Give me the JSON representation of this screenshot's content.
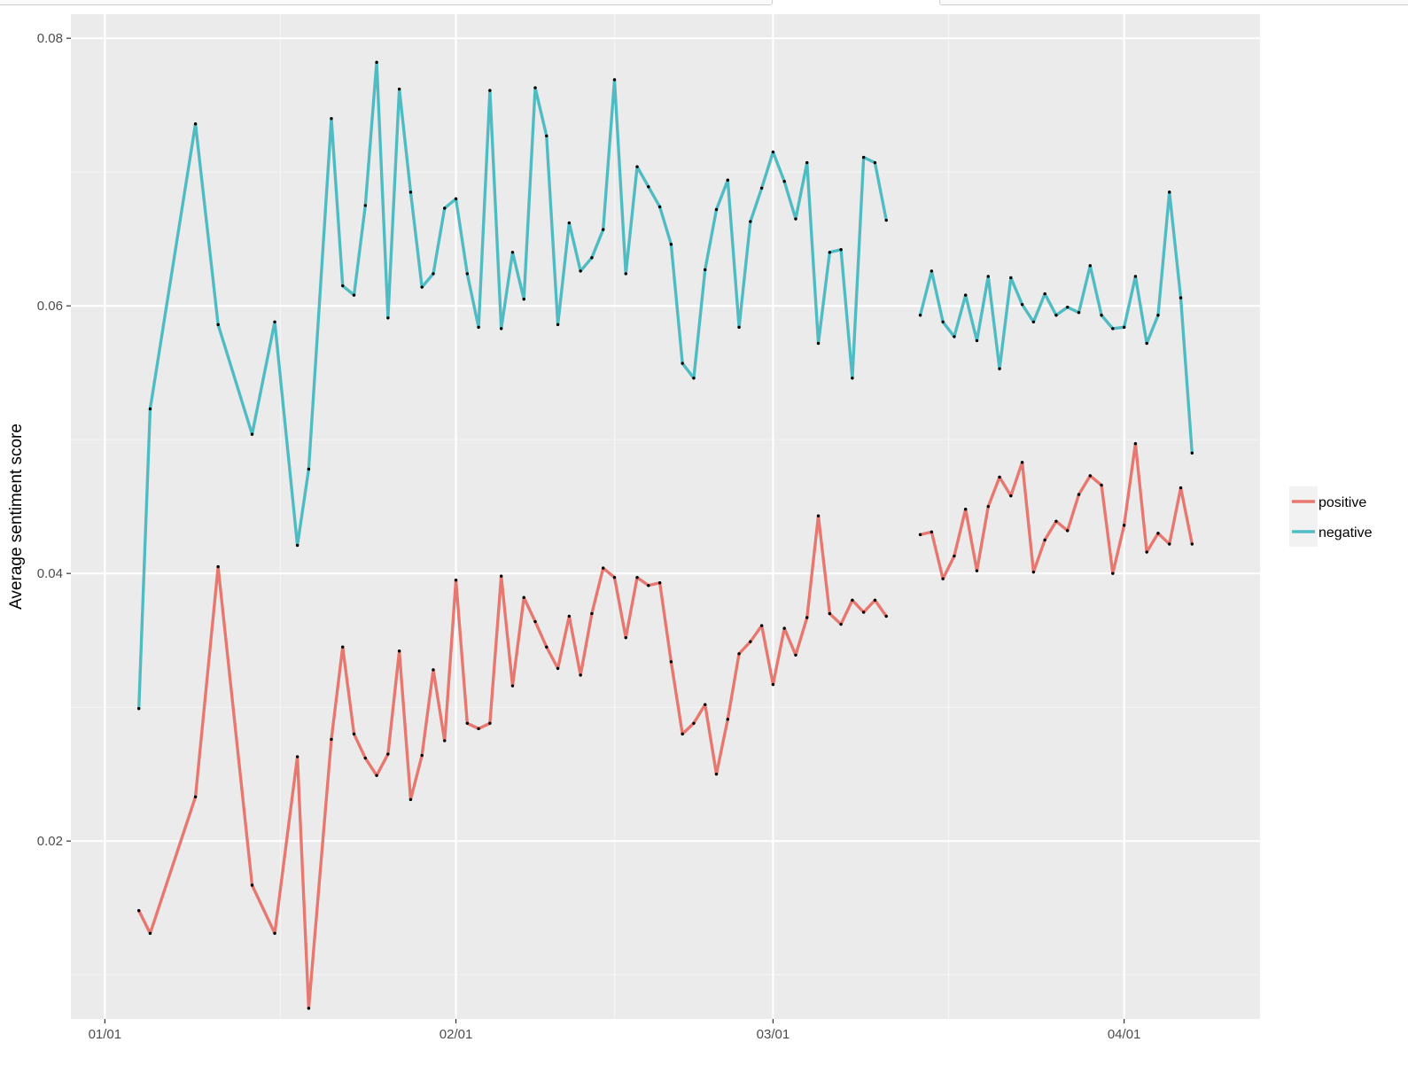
{
  "colors": {
    "panel": "#ebebeb",
    "grid_major": "#ffffff",
    "grid_minor": "#f5f5f5",
    "positive": "#e8776f",
    "negative": "#4fbcc4",
    "point": "#000000",
    "legend_key_bg": "#f2f2f2"
  },
  "chart_data": {
    "type": "line",
    "title": "",
    "xlabel": "",
    "ylabel": "Average sentiment score",
    "x_type": "date",
    "xlim": [
      "2016-12-29",
      "2017-04-13"
    ],
    "ylim": [
      0.0067,
      0.0818
    ],
    "x_ticks": [
      "2017-01-01",
      "2017-02-01",
      "2017-03-01",
      "2017-04-01"
    ],
    "x_tick_labels": [
      "01/01",
      "02/01",
      "03/01",
      "04/01"
    ],
    "y_ticks": [
      0.02,
      0.04,
      0.06,
      0.08
    ],
    "y_tick_labels": [
      "0.02",
      "0.04",
      "0.06",
      "0.08"
    ],
    "grid": true,
    "legend_position": "right",
    "series": [
      {
        "name": "positive",
        "color": "#e8776f",
        "segments": [
          [
            [
              "2017-01-04",
              0.0148
            ],
            [
              "2017-01-05",
              0.0131
            ],
            [
              "2017-01-09",
              0.0233
            ],
            [
              "2017-01-11",
              0.0405
            ],
            [
              "2017-01-14",
              0.0167
            ],
            [
              "2017-01-16",
              0.0131
            ],
            [
              "2017-01-18",
              0.0263
            ],
            [
              "2017-01-19",
              0.0075
            ],
            [
              "2017-01-21",
              0.0276
            ],
            [
              "2017-01-22",
              0.0345
            ],
            [
              "2017-01-23",
              0.028
            ],
            [
              "2017-01-24",
              0.0262
            ],
            [
              "2017-01-25",
              0.0249
            ],
            [
              "2017-01-26",
              0.0265
            ],
            [
              "2017-01-27",
              0.0342
            ],
            [
              "2017-01-28",
              0.0231
            ],
            [
              "2017-01-29",
              0.0264
            ],
            [
              "2017-01-30",
              0.0328
            ],
            [
              "2017-01-31",
              0.0275
            ],
            [
              "2017-02-01",
              0.0395
            ],
            [
              "2017-02-02",
              0.0288
            ],
            [
              "2017-02-03",
              0.0284
            ],
            [
              "2017-02-04",
              0.0288
            ],
            [
              "2017-02-05",
              0.0398
            ],
            [
              "2017-02-06",
              0.0316
            ],
            [
              "2017-02-07",
              0.0382
            ],
            [
              "2017-02-08",
              0.0364
            ],
            [
              "2017-02-09",
              0.0345
            ],
            [
              "2017-02-10",
              0.0329
            ],
            [
              "2017-02-11",
              0.0368
            ],
            [
              "2017-02-12",
              0.0324
            ],
            [
              "2017-02-13",
              0.037
            ],
            [
              "2017-02-14",
              0.0404
            ],
            [
              "2017-02-15",
              0.0397
            ],
            [
              "2017-02-16",
              0.0352
            ],
            [
              "2017-02-17",
              0.0397
            ],
            [
              "2017-02-18",
              0.0391
            ],
            [
              "2017-02-19",
              0.0393
            ],
            [
              "2017-02-20",
              0.0334
            ],
            [
              "2017-02-21",
              0.028
            ],
            [
              "2017-02-22",
              0.0288
            ],
            [
              "2017-02-23",
              0.0302
            ],
            [
              "2017-02-24",
              0.025
            ],
            [
              "2017-02-25",
              0.0291
            ],
            [
              "2017-02-26",
              0.034
            ],
            [
              "2017-02-27",
              0.0349
            ],
            [
              "2017-02-28",
              0.0361
            ],
            [
              "2017-03-01",
              0.0317
            ],
            [
              "2017-03-02",
              0.0359
            ],
            [
              "2017-03-03",
              0.0339
            ],
            [
              "2017-03-04",
              0.0367
            ],
            [
              "2017-03-05",
              0.0443
            ],
            [
              "2017-03-06",
              0.037
            ],
            [
              "2017-03-07",
              0.0362
            ],
            [
              "2017-03-08",
              0.038
            ],
            [
              "2017-03-09",
              0.0371
            ],
            [
              "2017-03-10",
              0.038
            ],
            [
              "2017-03-11",
              0.0368
            ]
          ],
          [
            [
              "2017-03-14",
              0.0429
            ],
            [
              "2017-03-15",
              0.0431
            ],
            [
              "2017-03-16",
              0.0396
            ],
            [
              "2017-03-17",
              0.0413
            ],
            [
              "2017-03-18",
              0.0448
            ],
            [
              "2017-03-19",
              0.0402
            ],
            [
              "2017-03-20",
              0.045
            ],
            [
              "2017-03-21",
              0.0472
            ],
            [
              "2017-03-22",
              0.0458
            ],
            [
              "2017-03-23",
              0.0483
            ],
            [
              "2017-03-24",
              0.0401
            ],
            [
              "2017-03-25",
              0.0425
            ],
            [
              "2017-03-26",
              0.0439
            ],
            [
              "2017-03-27",
              0.0432
            ],
            [
              "2017-03-28",
              0.0459
            ],
            [
              "2017-03-29",
              0.0473
            ],
            [
              "2017-03-30",
              0.0466
            ],
            [
              "2017-03-31",
              0.04
            ],
            [
              "2017-04-01",
              0.0436
            ],
            [
              "2017-04-02",
              0.0497
            ],
            [
              "2017-04-03",
              0.0416
            ],
            [
              "2017-04-04",
              0.043
            ],
            [
              "2017-04-05",
              0.0422
            ],
            [
              "2017-04-06",
              0.0464
            ],
            [
              "2017-04-07",
              0.0422
            ]
          ]
        ]
      },
      {
        "name": "negative",
        "color": "#4fbcc4",
        "segments": [
          [
            [
              "2017-01-04",
              0.0299
            ],
            [
              "2017-01-05",
              0.0523
            ],
            [
              "2017-01-09",
              0.0736
            ],
            [
              "2017-01-11",
              0.0586
            ],
            [
              "2017-01-14",
              0.0504
            ],
            [
              "2017-01-16",
              0.0588
            ],
            [
              "2017-01-18",
              0.0421
            ],
            [
              "2017-01-19",
              0.0478
            ],
            [
              "2017-01-21",
              0.074
            ],
            [
              "2017-01-22",
              0.0615
            ],
            [
              "2017-01-23",
              0.0608
            ],
            [
              "2017-01-24",
              0.0675
            ],
            [
              "2017-01-25",
              0.0782
            ],
            [
              "2017-01-26",
              0.0591
            ],
            [
              "2017-01-27",
              0.0762
            ],
            [
              "2017-01-28",
              0.0685
            ],
            [
              "2017-01-29",
              0.0614
            ],
            [
              "2017-01-30",
              0.0624
            ],
            [
              "2017-01-31",
              0.0673
            ],
            [
              "2017-02-01",
              0.068
            ],
            [
              "2017-02-02",
              0.0624
            ],
            [
              "2017-02-03",
              0.0584
            ],
            [
              "2017-02-04",
              0.0761
            ],
            [
              "2017-02-05",
              0.0583
            ],
            [
              "2017-02-06",
              0.064
            ],
            [
              "2017-02-07",
              0.0605
            ],
            [
              "2017-02-08",
              0.0763
            ],
            [
              "2017-02-09",
              0.0727
            ],
            [
              "2017-02-10",
              0.0586
            ],
            [
              "2017-02-11",
              0.0662
            ],
            [
              "2017-02-12",
              0.0626
            ],
            [
              "2017-02-13",
              0.0636
            ],
            [
              "2017-02-14",
              0.0657
            ],
            [
              "2017-02-15",
              0.0769
            ],
            [
              "2017-02-16",
              0.0624
            ],
            [
              "2017-02-17",
              0.0704
            ],
            [
              "2017-02-18",
              0.0689
            ],
            [
              "2017-02-19",
              0.0674
            ],
            [
              "2017-02-20",
              0.0646
            ],
            [
              "2017-02-21",
              0.0557
            ],
            [
              "2017-02-22",
              0.0546
            ],
            [
              "2017-02-23",
              0.0627
            ],
            [
              "2017-02-24",
              0.0672
            ],
            [
              "2017-02-25",
              0.0694
            ],
            [
              "2017-02-26",
              0.0584
            ],
            [
              "2017-02-27",
              0.0663
            ],
            [
              "2017-02-28",
              0.0688
            ],
            [
              "2017-03-01",
              0.0715
            ],
            [
              "2017-03-02",
              0.0693
            ],
            [
              "2017-03-03",
              0.0665
            ],
            [
              "2017-03-04",
              0.0707
            ],
            [
              "2017-03-05",
              0.0572
            ],
            [
              "2017-03-06",
              0.064
            ],
            [
              "2017-03-07",
              0.0642
            ],
            [
              "2017-03-08",
              0.0546
            ],
            [
              "2017-03-09",
              0.0711
            ],
            [
              "2017-03-10",
              0.0707
            ],
            [
              "2017-03-11",
              0.0664
            ]
          ],
          [
            [
              "2017-03-14",
              0.0593
            ],
            [
              "2017-03-15",
              0.0626
            ],
            [
              "2017-03-16",
              0.0588
            ],
            [
              "2017-03-17",
              0.0577
            ],
            [
              "2017-03-18",
              0.0608
            ],
            [
              "2017-03-19",
              0.0574
            ],
            [
              "2017-03-20",
              0.0622
            ],
            [
              "2017-03-21",
              0.0553
            ],
            [
              "2017-03-22",
              0.0621
            ],
            [
              "2017-03-23",
              0.0601
            ],
            [
              "2017-03-24",
              0.0588
            ],
            [
              "2017-03-25",
              0.0609
            ],
            [
              "2017-03-26",
              0.0593
            ],
            [
              "2017-03-27",
              0.0599
            ],
            [
              "2017-03-28",
              0.0595
            ],
            [
              "2017-03-29",
              0.063
            ],
            [
              "2017-03-30",
              0.0593
            ],
            [
              "2017-03-31",
              0.0583
            ],
            [
              "2017-04-01",
              0.0584
            ],
            [
              "2017-04-02",
              0.0622
            ],
            [
              "2017-04-03",
              0.0572
            ],
            [
              "2017-04-04",
              0.0593
            ],
            [
              "2017-04-05",
              0.0685
            ],
            [
              "2017-04-06",
              0.0606
            ],
            [
              "2017-04-07",
              0.049
            ]
          ]
        ]
      }
    ]
  }
}
